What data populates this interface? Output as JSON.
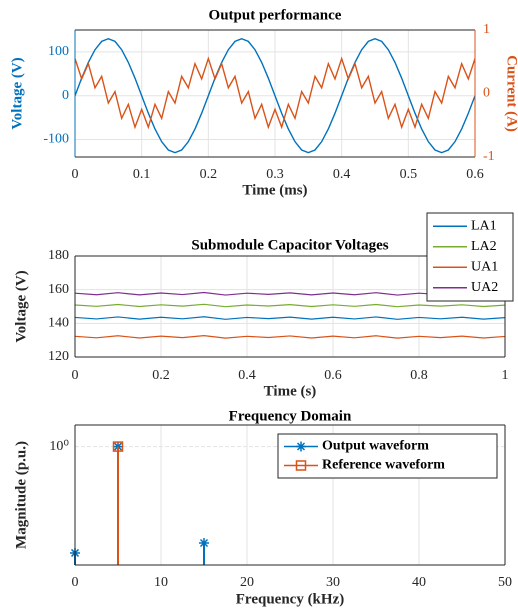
{
  "chart_data": [
    {
      "type": "line",
      "title": "Output performance",
      "xlabel": "Time (ms)",
      "ylabel": "Voltage (V)",
      "y2label": "Current (A)",
      "xlim": [
        0,
        0.6
      ],
      "xticks": [
        0,
        0.1,
        0.2,
        0.3,
        0.4,
        0.5,
        0.6
      ],
      "ylim": [
        -140,
        150
      ],
      "yticks": [
        -100,
        0,
        100
      ],
      "y2lim": [
        -1,
        1
      ],
      "y2ticks": [
        -1,
        0,
        1
      ],
      "grid": true,
      "x": [
        0,
        0.01,
        0.02,
        0.03,
        0.04,
        0.05,
        0.06,
        0.07,
        0.08,
        0.09,
        0.1,
        0.11,
        0.12,
        0.13,
        0.14,
        0.15,
        0.16,
        0.17,
        0.18,
        0.19,
        0.2,
        0.21,
        0.22,
        0.23,
        0.24,
        0.25,
        0.26,
        0.27,
        0.28,
        0.29,
        0.3,
        0.31,
        0.32,
        0.33,
        0.34,
        0.35,
        0.36,
        0.37,
        0.38,
        0.39,
        0.4,
        0.41,
        0.42,
        0.43,
        0.44,
        0.45,
        0.46,
        0.47,
        0.48,
        0.49,
        0.5,
        0.51,
        0.52,
        0.53,
        0.54,
        0.55,
        0.56,
        0.57,
        0.58,
        0.59,
        0.6
      ],
      "series": [
        {
          "color": "#0072BD",
          "axis": "y",
          "values": [
            0,
            40,
            76,
            105,
            124,
            130,
            124,
            105,
            76,
            40,
            0,
            -40,
            -76,
            -105,
            -124,
            -130,
            -124,
            -105,
            -76,
            -40,
            0,
            40,
            76,
            105,
            124,
            130,
            124,
            105,
            76,
            40,
            0,
            -40,
            -76,
            -105,
            -124,
            -130,
            -124,
            -105,
            -76,
            -40,
            0,
            40,
            76,
            105,
            124,
            130,
            124,
            105,
            76,
            40,
            0,
            -40,
            -76,
            -105,
            -124,
            -130,
            -124,
            -105,
            -76,
            -40,
            0
          ]
        },
        {
          "color": "#D95319",
          "axis": "y2",
          "values": [
            0.55,
            0.23,
            0.47,
            0.09,
            0.27,
            -0.15,
            0.03,
            -0.39,
            -0.17,
            -0.53,
            -0.25,
            -0.53,
            -0.17,
            -0.39,
            0.03,
            -0.15,
            0.27,
            0.09,
            0.47,
            0.23,
            0.55,
            0.23,
            0.47,
            0.09,
            0.27,
            -0.15,
            0.03,
            -0.39,
            -0.17,
            -0.53,
            -0.25,
            -0.53,
            -0.17,
            -0.39,
            0.03,
            -0.15,
            0.27,
            0.09,
            0.47,
            0.23,
            0.55,
            0.23,
            0.47,
            0.09,
            0.27,
            -0.15,
            0.03,
            -0.39,
            -0.17,
            -0.53,
            -0.25,
            -0.53,
            -0.17,
            -0.39,
            0.03,
            -0.15,
            0.27,
            0.09,
            0.47,
            0.23,
            0.55
          ]
        }
      ]
    },
    {
      "type": "line",
      "title": "Submodule Capacitor Voltages",
      "xlabel": "Time (s)",
      "ylabel": "Voltage (V)",
      "xlim": [
        0,
        1
      ],
      "xticks": [
        0,
        0.2,
        0.4,
        0.6,
        0.8,
        1
      ],
      "ylim": [
        120,
        180
      ],
      "yticks": [
        120,
        140,
        160,
        180
      ],
      "grid": true,
      "legend": "outside-northeast",
      "x": [
        0,
        0.05,
        0.1,
        0.15,
        0.2,
        0.25,
        0.3,
        0.35,
        0.4,
        0.45,
        0.5,
        0.55,
        0.6,
        0.65,
        0.7,
        0.75,
        0.8,
        0.85,
        0.9,
        0.95,
        1
      ],
      "series": [
        {
          "name": "LA1",
          "color": "#0072BD",
          "values": [
            143.5,
            142.6,
            143.8,
            142.5,
            143.6,
            142.7,
            143.9,
            142.4,
            143.5,
            142.8,
            143.7,
            142.5,
            143.6,
            142.6,
            143.8,
            142.4,
            143.5,
            142.7,
            143.6,
            142.5,
            143.4
          ]
        },
        {
          "name": "LA2",
          "color": "#77AC30",
          "values": [
            150.9,
            150.1,
            151.2,
            150.0,
            151.0,
            150.2,
            151.3,
            149.9,
            150.9,
            150.3,
            151.1,
            150.0,
            151.0,
            150.1,
            151.2,
            149.9,
            150.9,
            150.2,
            151.0,
            150.0,
            150.8
          ]
        },
        {
          "name": "UA1",
          "color": "#D95319",
          "values": [
            132.3,
            131.4,
            132.6,
            131.3,
            132.4,
            131.5,
            132.7,
            131.2,
            132.3,
            131.6,
            132.5,
            131.3,
            132.4,
            131.4,
            132.6,
            131.2,
            132.3,
            131.5,
            132.4,
            131.3,
            132.2
          ]
        },
        {
          "name": "UA2",
          "color": "#7E2F8E",
          "values": [
            157.9,
            157.0,
            158.2,
            156.9,
            158.0,
            157.1,
            158.3,
            156.8,
            157.9,
            157.2,
            158.1,
            156.9,
            158.0,
            157.0,
            158.2,
            156.8,
            157.9,
            157.1,
            158.0,
            156.9,
            157.8
          ]
        }
      ]
    },
    {
      "type": "stem",
      "title": "Frequency Domain",
      "xlabel": "Frequency (kHz)",
      "ylabel": "Magnitude (p.u.)",
      "xlim": [
        0,
        50
      ],
      "xticks": [
        0,
        10,
        20,
        30,
        40,
        50
      ],
      "ylim": [
        0.13,
        1.45
      ],
      "log_y": true,
      "yticks": [
        {
          "value": 1,
          "label": "10⁰"
        }
      ],
      "grid": true,
      "legend": "northeast",
      "series": [
        {
          "name": "Output waveform",
          "color": "#0072BD",
          "marker": "asterisk",
          "x": [
            0,
            5,
            15
          ],
          "values": [
            0.16,
            1,
            0.19
          ]
        },
        {
          "name": "Reference waveform",
          "color": "#D95319",
          "marker": "square",
          "x": [
            5
          ],
          "values": [
            1
          ]
        }
      ]
    }
  ]
}
